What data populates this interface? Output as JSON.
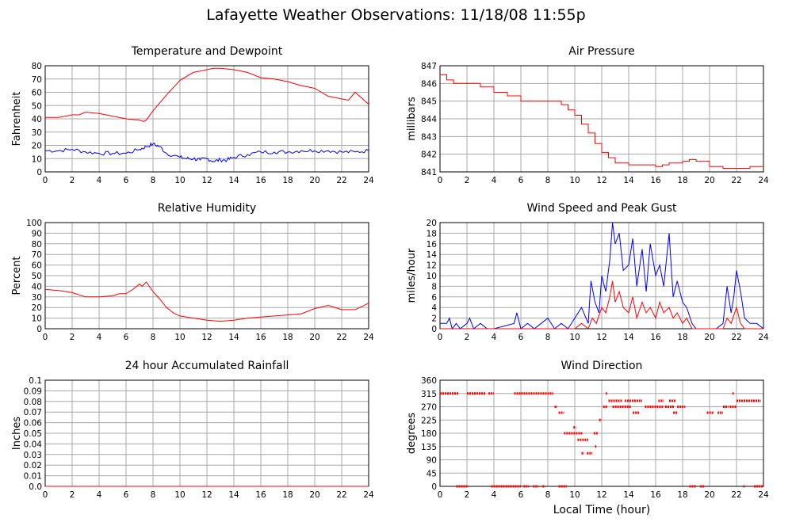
{
  "page": {
    "title": "Lafayette Weather Observations: 11/18/08 11:55p"
  },
  "colors": {
    "red": "#ff0000",
    "blue": "#0000ff",
    "grid": "#a8a8a8",
    "frame": "#000000"
  },
  "xaxis": {
    "ticks": [
      "0",
      "2",
      "4",
      "6",
      "8",
      "10",
      "12",
      "14",
      "16",
      "18",
      "20",
      "22",
      "24"
    ],
    "label": "Local Time (hour)"
  },
  "chart_data": [
    {
      "type": "line",
      "title": "Temperature and Dewpoint",
      "ylabel": "Fahrenheit",
      "xlim": [
        0,
        24
      ],
      "ylim": [
        0,
        80
      ],
      "yticks": [
        "0",
        "10",
        "20",
        "30",
        "40",
        "50",
        "60",
        "70",
        "80"
      ],
      "grid": true,
      "series": [
        {
          "color": "red",
          "style": "line",
          "x": [
            0,
            1,
            2,
            2.5,
            3,
            4,
            5,
            6,
            7,
            7.3,
            7.5,
            8,
            9,
            10,
            11,
            12,
            12.5,
            13,
            14,
            15,
            16,
            17,
            18,
            19,
            20,
            21,
            22,
            22.5,
            23,
            24
          ],
          "y": [
            41,
            41,
            43,
            43,
            45,
            44,
            42,
            40,
            39,
            38,
            39,
            46,
            58,
            69,
            75,
            77,
            78,
            78,
            77,
            75,
            71,
            70,
            68,
            65,
            63,
            57,
            55,
            54,
            60,
            51
          ]
        },
        {
          "color": "blue",
          "style": "line",
          "jitter": 1.5,
          "x": [
            0,
            1,
            2,
            3,
            4,
            5,
            6,
            7,
            7.5,
            8,
            8.5,
            9,
            10,
            10.5,
            11,
            11.5,
            12,
            12.5,
            13,
            13.5,
            14,
            15,
            16,
            17,
            18,
            19,
            20,
            21,
            22,
            23,
            24
          ],
          "y": [
            16,
            16,
            17,
            15,
            14,
            14,
            14,
            17,
            19,
            21,
            19,
            14,
            11,
            10,
            10,
            9,
            10,
            8,
            9,
            9,
            11,
            13,
            15,
            15,
            15,
            16,
            16,
            16,
            15,
            15,
            16
          ]
        }
      ]
    },
    {
      "type": "line",
      "title": "Air Pressure",
      "ylabel": "millibars",
      "xlim": [
        0,
        24
      ],
      "ylim": [
        841,
        847
      ],
      "yticks": [
        "841",
        "842",
        "843",
        "844",
        "845",
        "846",
        "847"
      ],
      "grid": true,
      "series": [
        {
          "color": "red",
          "style": "step",
          "x": [
            0,
            0.5,
            1,
            2,
            3,
            4,
            5,
            6,
            7,
            8,
            9,
            9.5,
            10,
            10.5,
            11,
            11.5,
            12,
            12.5,
            13,
            14,
            15,
            16,
            16.5,
            17,
            18,
            18.5,
            19,
            20,
            21,
            22,
            23,
            24
          ],
          "y": [
            846.5,
            846.2,
            846,
            846,
            845.8,
            845.5,
            845.3,
            845,
            845,
            845,
            844.8,
            844.5,
            844.2,
            843.7,
            843.2,
            842.6,
            842.1,
            841.8,
            841.5,
            841.4,
            841.4,
            841.3,
            841.4,
            841.5,
            841.6,
            841.7,
            841.6,
            841.3,
            841.2,
            841.2,
            841.3,
            841.3
          ]
        }
      ]
    },
    {
      "type": "line",
      "title": "Relative Humidity",
      "ylabel": "Percent",
      "xlim": [
        0,
        24
      ],
      "ylim": [
        0,
        100
      ],
      "yticks": [
        "0",
        "10",
        "20",
        "30",
        "40",
        "50",
        "60",
        "70",
        "80",
        "90",
        "100"
      ],
      "grid": true,
      "series": [
        {
          "color": "red",
          "style": "line",
          "x": [
            0,
            1,
            2,
            3,
            4,
            5,
            5.5,
            6,
            6.5,
            7,
            7.2,
            7.5,
            8,
            8.5,
            9,
            9.5,
            10,
            11,
            12,
            13,
            14,
            15,
            16,
            17,
            18,
            19,
            20,
            21,
            22,
            23,
            24
          ],
          "y": [
            37,
            36,
            34,
            30,
            30,
            31,
            33,
            33,
            37,
            42,
            40,
            44,
            35,
            28,
            20,
            15,
            12,
            10,
            8,
            7,
            8,
            10,
            11,
            12,
            13,
            14,
            19,
            22,
            18,
            18,
            24
          ]
        }
      ]
    },
    {
      "type": "line",
      "title": "Wind Speed and Peak Gust",
      "ylabel": "miles/hour",
      "xlim": [
        0,
        24
      ],
      "ylim": [
        0,
        20
      ],
      "yticks": [
        "0",
        "2",
        "4",
        "6",
        "8",
        "10",
        "12",
        "14",
        "16",
        "18",
        "20"
      ],
      "grid": true,
      "series": [
        {
          "color": "blue",
          "style": "line",
          "x": [
            0,
            0.5,
            0.7,
            0.9,
            1.2,
            1.5,
            2,
            2.2,
            2.5,
            3,
            3.5,
            4,
            5.5,
            5.7,
            6,
            6.5,
            7,
            7.5,
            8,
            8.5,
            9,
            9.5,
            10,
            10.5,
            11,
            11.2,
            11.5,
            11.8,
            12,
            12.3,
            12.6,
            12.8,
            13,
            13.3,
            13.6,
            14,
            14.3,
            14.6,
            15,
            15.3,
            15.6,
            16,
            16.3,
            16.6,
            17,
            17.3,
            17.6,
            18,
            18.3,
            18.7,
            19,
            19.5,
            20,
            20.5,
            21,
            21.3,
            21.6,
            21.8,
            22,
            22.3,
            22.6,
            23,
            23.5,
            24
          ],
          "y": [
            1,
            1,
            2,
            0,
            1,
            0,
            1,
            2,
            0,
            1,
            0,
            0,
            1,
            3,
            0,
            1,
            0,
            1,
            2,
            0,
            1,
            0,
            2,
            4,
            1,
            9,
            5,
            3,
            10,
            7,
            13,
            20,
            16,
            18,
            11,
            12,
            17,
            8,
            15,
            7,
            16,
            10,
            12,
            8,
            18,
            6,
            9,
            5,
            4,
            1,
            0,
            0,
            0,
            0,
            1,
            8,
            3,
            6,
            11,
            7,
            2,
            1,
            1,
            0
          ]
        },
        {
          "color": "red",
          "style": "line",
          "x": [
            0,
            10,
            10.5,
            11,
            11.3,
            11.6,
            12,
            12.3,
            12.6,
            12.8,
            13,
            13.3,
            13.6,
            14,
            14.3,
            14.6,
            15,
            15.3,
            15.6,
            16,
            16.3,
            16.6,
            17,
            17.3,
            17.6,
            18,
            18.3,
            18.7,
            19,
            20,
            21,
            21.3,
            21.6,
            22,
            22.3,
            22.6,
            23,
            24
          ],
          "y": [
            0,
            0,
            1,
            0,
            2,
            1,
            4,
            3,
            6,
            9,
            5,
            7,
            4,
            3,
            6,
            2,
            5,
            3,
            4,
            2,
            5,
            3,
            4,
            2,
            3,
            1,
            2,
            0,
            0,
            0,
            0,
            2,
            1,
            4,
            1,
            0,
            0,
            0
          ]
        }
      ]
    },
    {
      "type": "line",
      "title": "24 hour Accumulated Rainfall",
      "ylabel": "Inches",
      "xlim": [
        0,
        24
      ],
      "ylim": [
        0,
        0.1
      ],
      "yticks": [
        "0.0",
        "0.01",
        "0.02",
        "0.03",
        "0.04",
        "0.05",
        "0.06",
        "0.07",
        "0.08",
        "0.09",
        "0.1"
      ],
      "grid": true,
      "series": [
        {
          "color": "red",
          "style": "line",
          "x": [
            0,
            24
          ],
          "y": [
            0,
            0
          ]
        }
      ]
    },
    {
      "type": "scatter",
      "title": "Wind Direction",
      "ylabel": "degrees",
      "xlabel": "Local Time (hour)",
      "xlim": [
        0,
        24
      ],
      "ylim": [
        0,
        360
      ],
      "yticks": [
        "0",
        "45",
        "90",
        "135",
        "180",
        "225",
        "270",
        "315",
        "360"
      ],
      "grid": true,
      "series": [
        {
          "color": "red",
          "style": "dash",
          "segments": [
            [
              0,
              1.4,
              315
            ],
            [
              2,
              3.4,
              315
            ],
            [
              3.6,
              4.0,
              315
            ],
            [
              5.5,
              8.4,
              315
            ],
            [
              1.2,
              2.1,
              0
            ],
            [
              3.8,
              6.0,
              0
            ],
            [
              6.2,
              6.6,
              0
            ],
            [
              6.9,
              7.3,
              0
            ],
            [
              7.6,
              7.8,
              0
            ],
            [
              8.8,
              9.4,
              0
            ],
            [
              8.5,
              8.7,
              270
            ],
            [
              8.8,
              9.2,
              250
            ],
            [
              9.2,
              10.6,
              180
            ],
            [
              9.9,
              10.1,
              200
            ],
            [
              10.2,
              11.0,
              158
            ],
            [
              10.5,
              10.7,
              112
            ],
            [
              10.9,
              11.3,
              112
            ],
            [
              11.4,
              11.7,
              180
            ],
            [
              11.5,
              11.6,
              135
            ],
            [
              11.8,
              12.0,
              225
            ],
            [
              12.1,
              12.4,
              270
            ],
            [
              12.3,
              12.4,
              315
            ],
            [
              12.5,
              13.5,
              290
            ],
            [
              12.8,
              14.2,
              270
            ],
            [
              13.7,
              15.0,
              290
            ],
            [
              14.3,
              14.8,
              250
            ],
            [
              15.2,
              16.6,
              270
            ],
            [
              16.2,
              16.6,
              290
            ],
            [
              17.0,
              17.5,
              290
            ],
            [
              16.7,
              17.4,
              270
            ],
            [
              17.6,
              18.2,
              270
            ],
            [
              17.3,
              17.6,
              250
            ],
            [
              18.5,
              19.0,
              0
            ],
            [
              19.3,
              19.6,
              0
            ],
            [
              19.8,
              20.3,
              250
            ],
            [
              20.6,
              21.0,
              250
            ],
            [
              21.0,
              21.4,
              270
            ],
            [
              21.5,
              22.0,
              270
            ],
            [
              21.7,
              21.8,
              315
            ],
            [
              22.0,
              23.8,
              290
            ],
            [
              22.5,
              22.6,
              0
            ],
            [
              23.3,
              24,
              0
            ]
          ]
        }
      ]
    }
  ]
}
